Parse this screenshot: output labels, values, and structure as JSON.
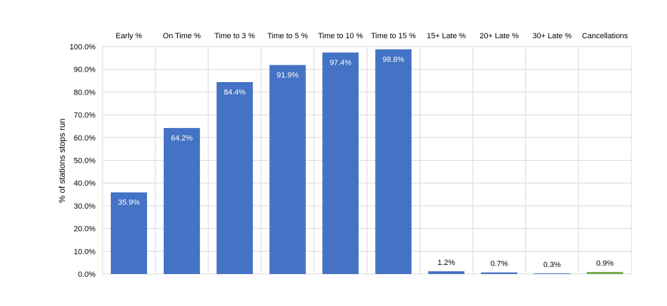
{
  "chart_data": {
    "type": "bar",
    "title": "",
    "xlabel": "",
    "ylabel": "% of stations stops run",
    "categories": [
      "Early %",
      "On Time %",
      "Time to 3 %",
      "Time to 5 %",
      "Time to 10 %",
      "Time to 15 %",
      "15+ Late %",
      "20+ Late %",
      "30+ Late %",
      "Cancellations"
    ],
    "values": [
      35.9,
      64.2,
      84.4,
      91.9,
      97.4,
      98.8,
      1.2,
      0.7,
      0.3,
      0.9
    ],
    "data_labels": [
      "35.9%",
      "64.2%",
      "84.4%",
      "91.9%",
      "97.4%",
      "98.8%",
      "1.2%",
      "0.7%",
      "0.3%",
      "0.9%"
    ],
    "ylim": [
      0,
      100
    ],
    "yticks": [
      "0.0%",
      "10.0%",
      "20.0%",
      "30.0%",
      "40.0%",
      "50.0%",
      "60.0%",
      "70.0%",
      "80.0%",
      "90.0%",
      "100.0%"
    ],
    "grid": true,
    "category_axis_position": "top",
    "colors": {
      "bar": "#4472C4",
      "cancellations_bar": "#70AD47",
      "grid": "#D9D9D9",
      "text": "#000000",
      "label_inside": "#ffffff"
    }
  }
}
